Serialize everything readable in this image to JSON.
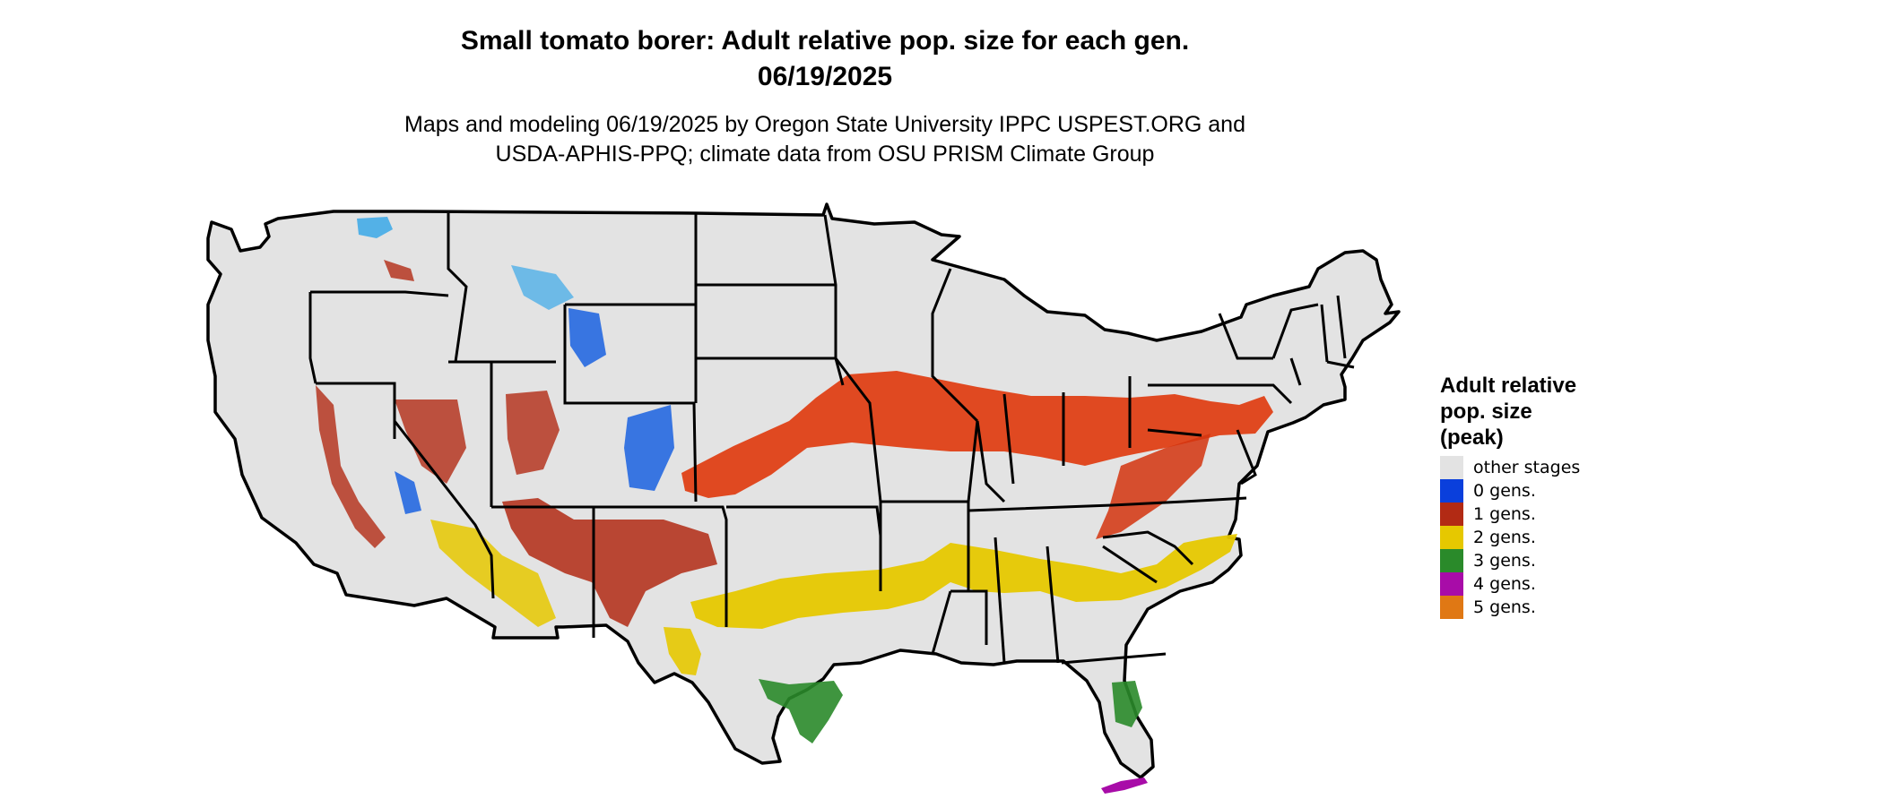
{
  "title": {
    "line1": "Small tomato borer: Adult relative pop. size for each gen.",
    "line2": "06/19/2025"
  },
  "subtitle": {
    "line1": "Maps and modeling 06/19/2025 by Oregon State University IPPC USPEST.ORG and",
    "line2": "USDA-APHIS-PPQ; climate data from OSU PRISM Climate Group"
  },
  "legend": {
    "title_lines": [
      "Adult relative",
      "pop. size",
      "(peak)"
    ],
    "items": [
      {
        "label": "other stages",
        "color": "#e3e3e3"
      },
      {
        "label": "0 gens.",
        "color": "#0a3fdc"
      },
      {
        "label": "1 gens.",
        "color": "#b22a14"
      },
      {
        "label": "2 gens.",
        "color": "#e6c800"
      },
      {
        "label": "3 gens.",
        "color": "#2a8a2a"
      },
      {
        "label": "4 gens.",
        "color": "#a80ca8"
      },
      {
        "label": "5 gens.",
        "color": "#e07814"
      }
    ]
  },
  "map_colors": {
    "land": "#e3e3e3",
    "border": "#000000",
    "zero_gens_light": "#3aa8e8",
    "one_gen_band": "#e03c10"
  }
}
